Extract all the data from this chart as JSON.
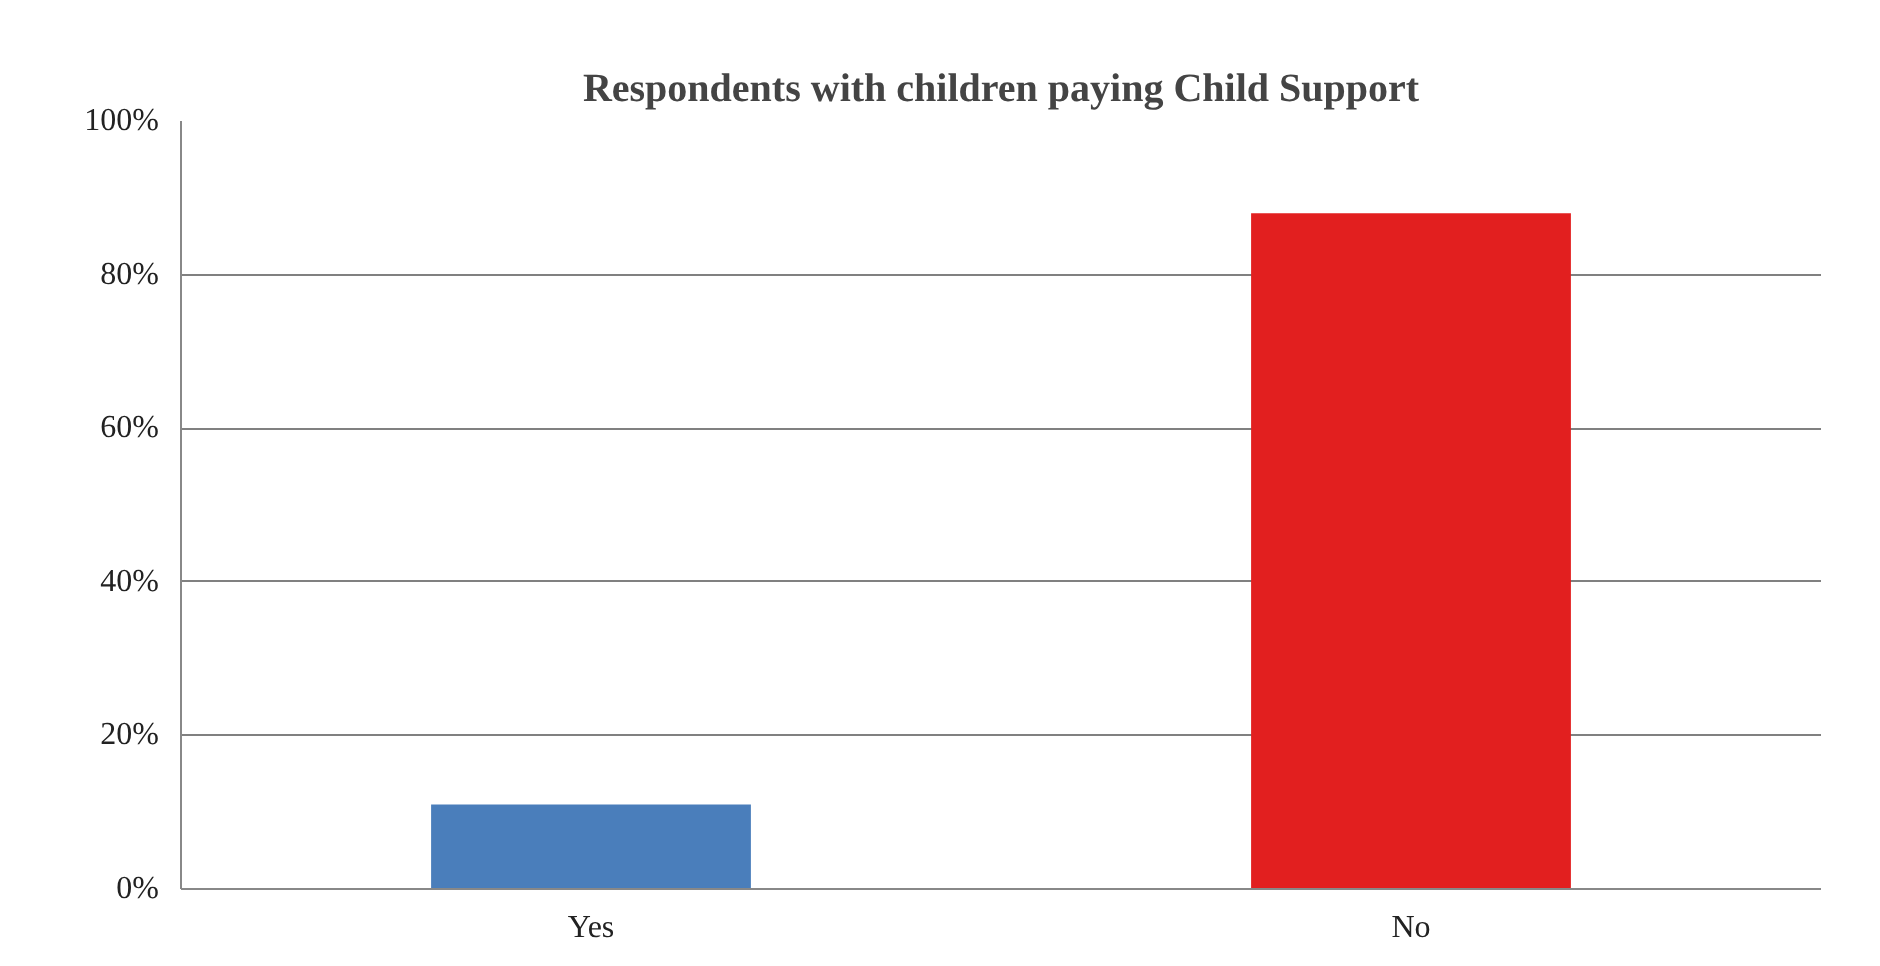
{
  "chart_data": {
    "type": "bar",
    "title": "Respondents with children paying Child Support",
    "categories": [
      "Yes",
      "No"
    ],
    "values": [
      11,
      88
    ],
    "colors": [
      "#4a7ebb",
      "#e21f1f"
    ],
    "ylim": [
      0,
      100
    ],
    "yticks": [
      {
        "value": 0,
        "label": "0%"
      },
      {
        "value": 20,
        "label": "20%"
      },
      {
        "value": 40,
        "label": "40%"
      },
      {
        "value": 60,
        "label": "60%"
      },
      {
        "value": 80,
        "label": "80%"
      },
      {
        "value": 100,
        "label": "100%"
      }
    ],
    "grid": "y"
  }
}
